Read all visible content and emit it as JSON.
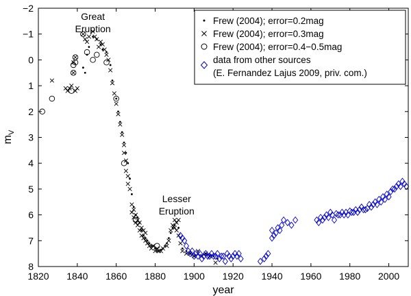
{
  "chart_data": {
    "type": "scatter",
    "title": "",
    "xlabel": "year",
    "ylabel": "mV",
    "ylabel_main": "m",
    "ylabel_sub": "V",
    "xlim": [
      1820,
      2010
    ],
    "ylim": [
      8,
      -2
    ],
    "y_inverted": true,
    "grid": false,
    "legend_placement": "top-right",
    "x_ticks": [
      1820,
      1840,
      1860,
      1880,
      1900,
      1920,
      1940,
      1960,
      1980,
      2000
    ],
    "y_ticks": [
      -2,
      -1,
      0,
      1,
      2,
      3,
      4,
      5,
      6,
      7,
      8
    ],
    "x_tick_labels": [
      "1820",
      "1840",
      "1860",
      "1880",
      "1900",
      "1920",
      "1940",
      "1960",
      "1980",
      "2000"
    ],
    "y_tick_labels": [
      "−2",
      "−1",
      "0",
      "1",
      "2",
      "3",
      "4",
      "5",
      "6",
      "7",
      "8"
    ],
    "annotations": [
      {
        "lines": [
          "Great",
          "Eruption"
        ],
        "x": 1848,
        "y": -1.55
      },
      {
        "lines": [
          "Lesser",
          "Eruption"
        ],
        "x": 1891,
        "y": 5.5
      }
    ],
    "legend": {
      "entries": [
        "Frew (2004); error=0.2mag",
        "Frew (2004); error=0.3mag",
        "Frew (2004); error=0.4−0.5mag",
        "data from other sources",
        "(E. Fernandez Lajus 2009, priv. com.)"
      ]
    },
    "series": [
      {
        "name": "Frew (2004); error=0.2mag",
        "marker": "dot",
        "color": "#000000",
        "x": [
          1843,
          1844,
          1845,
          1846,
          1848,
          1850,
          1852,
          1853,
          1855,
          1857,
          1858,
          1860,
          1861,
          1862,
          1863,
          1864,
          1865,
          1866,
          1867,
          1868,
          1869,
          1870,
          1871,
          1872,
          1873,
          1874,
          1875,
          1876,
          1877,
          1878,
          1879,
          1880,
          1881,
          1882,
          1883,
          1884,
          1885,
          1886,
          1887,
          1888,
          1889,
          1890,
          1891,
          1892,
          1893,
          1894,
          1896,
          1898,
          1900,
          1902,
          1904,
          1906,
          1908,
          1910,
          1912
        ],
        "y": [
          0.3,
          0.5,
          -0.2,
          -0.5,
          -0.9,
          -0.8,
          -0.6,
          -0.4,
          -0.3,
          0.2,
          0.8,
          1.5,
          2.0,
          2.4,
          2.8,
          3.2,
          3.6,
          4.0,
          4.6,
          5.2,
          5.7,
          6.0,
          6.1,
          6.3,
          6.6,
          6.8,
          6.9,
          7.0,
          7.1,
          7.2,
          7.2,
          7.3,
          7.4,
          7.4,
          7.35,
          7.3,
          7.2,
          7.1,
          6.9,
          6.7,
          6.5,
          6.4,
          6.3,
          6.5,
          6.9,
          7.3,
          7.4,
          7.5,
          7.6,
          7.5,
          7.6,
          7.5,
          7.6,
          7.6,
          7.7
        ]
      },
      {
        "name": "Frew (2004); error=0.3mag",
        "marker": "cross",
        "color": "#000000",
        "x": [
          1827,
          1834,
          1835,
          1836,
          1837,
          1838,
          1838,
          1839,
          1839,
          1840,
          1843,
          1844,
          1845,
          1846,
          1848,
          1849,
          1850,
          1851,
          1852,
          1853,
          1854,
          1855,
          1856,
          1857,
          1858,
          1859,
          1860,
          1861,
          1862,
          1863,
          1864,
          1864,
          1865,
          1865,
          1866,
          1866,
          1867,
          1868,
          1868,
          1869,
          1869,
          1870,
          1870,
          1871,
          1871,
          1872,
          1872,
          1873,
          1873,
          1874,
          1874,
          1875,
          1875,
          1876,
          1877,
          1878,
          1879,
          1880,
          1881,
          1882,
          1883,
          1884,
          1886,
          1887,
          1888,
          1889,
          1890,
          1890,
          1891,
          1891,
          1892,
          1892,
          1893,
          1894,
          1896,
          1898,
          1900,
          1902,
          1904,
          1906,
          1908,
          1911
        ],
        "y": [
          0.8,
          1.1,
          1.2,
          1.1,
          1.0,
          0.5,
          0.1,
          -0.1,
          1.2,
          1.1,
          -1.0,
          -0.8,
          -0.7,
          -0.9,
          -1.1,
          -0.9,
          -0.8,
          -0.5,
          -0.7,
          -0.6,
          -0.4,
          -0.2,
          0.0,
          0.4,
          0.9,
          1.3,
          1.7,
          2.1,
          2.5,
          2.9,
          3.3,
          3.6,
          3.9,
          4.3,
          4.5,
          4.8,
          5.0,
          5.6,
          5.9,
          6.1,
          5.8,
          6.3,
          6.0,
          6.4,
          6.2,
          6.6,
          6.3,
          6.8,
          6.5,
          6.9,
          6.6,
          7.0,
          6.7,
          7.1,
          7.2,
          7.3,
          7.2,
          7.4,
          7.3,
          7.4,
          7.4,
          7.3,
          7.2,
          7.0,
          6.6,
          6.4,
          6.2,
          6.5,
          6.3,
          6.6,
          6.2,
          6.8,
          7.1,
          7.4,
          7.5,
          7.5,
          7.6,
          7.4,
          7.6,
          7.5,
          7.6,
          7.85
        ]
      },
      {
        "name": "Frew (2004); error=0.4−0.5mag",
        "marker": "circle",
        "color": "#000000",
        "x": [
          1822,
          1827,
          1837,
          1838,
          1838,
          1839,
          1839,
          1843,
          1845,
          1848,
          1850,
          1855,
          1860,
          1864,
          1870,
          1881
        ],
        "y": [
          2.0,
          1.5,
          1.2,
          0.5,
          0.2,
          -0.1,
          0.1,
          -1.0,
          -0.3,
          0.0,
          -0.2,
          0.1,
          1.5,
          4.0,
          6.2,
          7.2
        ]
      },
      {
        "name": "data from other sources",
        "marker": "diamond",
        "color": "#0000cc",
        "x": [
          1893,
          1894,
          1895,
          1896,
          1897,
          1898,
          1899,
          1900,
          1901,
          1902,
          1903,
          1904,
          1905,
          1906,
          1907,
          1908,
          1909,
          1910,
          1911,
          1912,
          1913,
          1914,
          1915,
          1916,
          1917,
          1918,
          1919,
          1920,
          1921,
          1922,
          1923,
          1924,
          1934,
          1936,
          1937,
          1938,
          1940,
          1940,
          1941,
          1942,
          1943,
          1944,
          1945,
          1946,
          1948,
          1950,
          1952,
          1963,
          1964,
          1965,
          1966,
          1967,
          1968,
          1969,
          1970,
          1971,
          1972,
          1973,
          1974,
          1975,
          1976,
          1977,
          1978,
          1979,
          1980,
          1981,
          1982,
          1983,
          1984,
          1985,
          1986,
          1987,
          1988,
          1989,
          1990,
          1991,
          1992,
          1993,
          1994,
          1995,
          1996,
          1997,
          1998,
          1999,
          2000,
          2001,
          2002,
          2003,
          2004,
          2005,
          2006,
          2007,
          2008,
          2009
        ],
        "y": [
          6.8,
          6.9,
          7.0,
          7.2,
          7.4,
          7.5,
          7.4,
          7.6,
          7.5,
          7.6,
          7.5,
          7.7,
          7.6,
          7.5,
          7.6,
          7.6,
          7.5,
          7.6,
          7.6,
          7.5,
          7.7,
          7.6,
          7.6,
          7.8,
          7.5,
          7.6,
          7.7,
          7.6,
          7.5,
          7.6,
          7.5,
          7.7,
          7.8,
          7.7,
          7.6,
          7.5,
          6.9,
          6.6,
          6.8,
          6.7,
          6.5,
          6.6,
          6.4,
          6.2,
          6.3,
          6.4,
          6.2,
          6.2,
          6.3,
          6.1,
          6.2,
          6.1,
          6.0,
          6.1,
          5.9,
          6.0,
          6.2,
          5.95,
          6.0,
          6.0,
          5.9,
          6.0,
          5.9,
          6.0,
          5.85,
          5.9,
          5.9,
          5.8,
          5.9,
          5.8,
          5.7,
          5.8,
          5.8,
          5.75,
          5.6,
          5.7,
          5.6,
          5.5,
          5.6,
          5.4,
          5.5,
          5.3,
          5.4,
          5.2,
          5.3,
          5.1,
          5.0,
          5.0,
          4.9,
          4.8,
          4.9,
          4.7,
          4.8,
          4.9
        ]
      }
    ]
  }
}
